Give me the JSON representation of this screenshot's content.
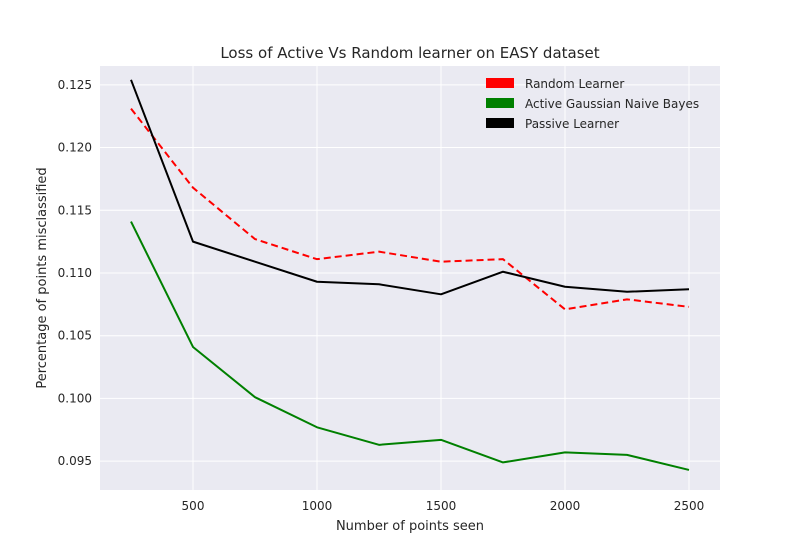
{
  "chart_data": {
    "type": "line",
    "title": "Loss of Active Vs Random learner on EASY dataset",
    "xlabel": "Number of points seen",
    "ylabel": "Percentage of points misclassified",
    "xlim": [
      125,
      2625
    ],
    "ylim": [
      0.0927,
      0.1265
    ],
    "xticks": [
      500,
      1000,
      1500,
      2000,
      2500
    ],
    "yticks": [
      0.095,
      0.1,
      0.105,
      0.11,
      0.115,
      0.12,
      0.125
    ],
    "ytick_labels": [
      "0.095",
      "0.100",
      "0.105",
      "0.110",
      "0.115",
      "0.120",
      "0.125"
    ],
    "grid": true,
    "legend_position": "top-right",
    "x": [
      250,
      500,
      750,
      1000,
      1250,
      1500,
      1750,
      2000,
      2250,
      2500
    ],
    "series": [
      {
        "name": "Random Learner",
        "color": "#ff0000",
        "style": "dashed",
        "values": [
          0.1231,
          0.1168,
          0.1127,
          0.1111,
          0.1117,
          0.1109,
          0.1111,
          0.1071,
          0.1079,
          0.1073
        ]
      },
      {
        "name": "Active Gaussian Naive Bayes",
        "color": "#008000",
        "style": "solid",
        "values": [
          0.1141,
          0.1041,
          0.1001,
          0.0977,
          0.0963,
          0.0967,
          0.0949,
          0.0957,
          0.0955,
          0.0943
        ]
      },
      {
        "name": "Passive Learner",
        "color": "#000000",
        "style": "solid",
        "values": [
          0.1254,
          0.1125,
          0.1109,
          0.1093,
          0.1091,
          0.1083,
          0.1101,
          0.1089,
          0.1085,
          0.1087
        ]
      }
    ]
  }
}
